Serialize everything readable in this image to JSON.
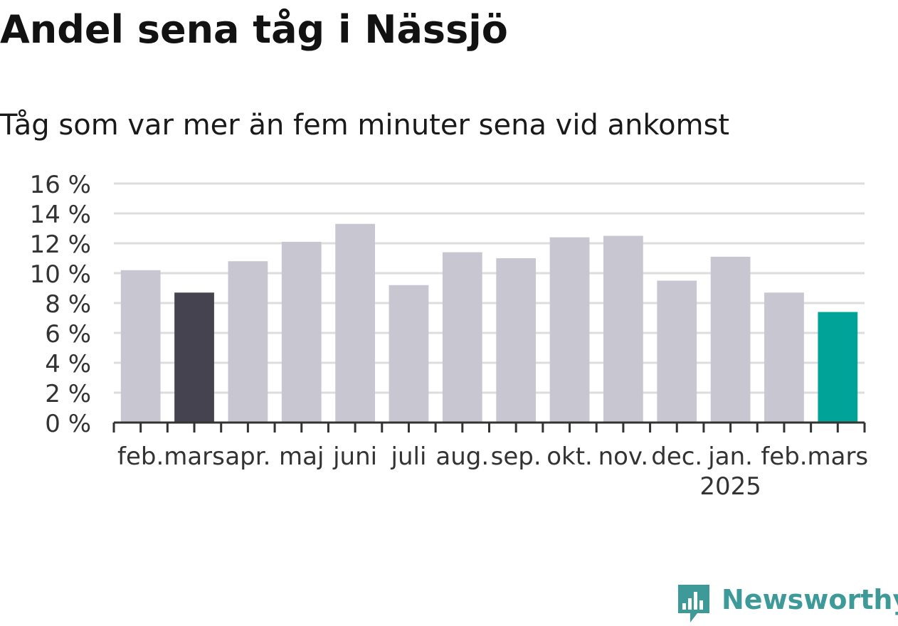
{
  "title": "Andel sena tåg i Nässjö",
  "subtitle": "Tåg som var mer än fem minuter sena vid ankomst",
  "brand": {
    "name": "Newsworthy",
    "color": "#3d9a98",
    "icon": "bar-chart-speech-bubble-icon"
  },
  "colors": {
    "default_bar": "#c8c7d1",
    "highlight_prev_year": "#45434f",
    "highlight_current": "#00a398",
    "grid": "#dddddd",
    "axis": "#333333"
  },
  "chart_data": {
    "type": "bar",
    "categories": [
      "feb.",
      "mars",
      "apr.",
      "maj",
      "juni",
      "juli",
      "aug.",
      "sep.",
      "okt.",
      "nov.",
      "dec.",
      "jan.",
      "feb.",
      "mars"
    ],
    "year_label": {
      "text": "2025",
      "under_category_index": 11
    },
    "values": [
      10.2,
      8.7,
      10.8,
      12.1,
      13.3,
      9.2,
      11.4,
      11.0,
      12.4,
      12.5,
      9.5,
      11.1,
      8.7,
      7.4
    ],
    "bar_colors": [
      "default",
      "highlight_prev_year",
      "default",
      "default",
      "default",
      "default",
      "default",
      "default",
      "default",
      "default",
      "default",
      "default",
      "default",
      "highlight_current"
    ],
    "ylim": [
      0,
      16
    ],
    "yticks": [
      0,
      2,
      4,
      6,
      8,
      10,
      12,
      14,
      16
    ],
    "ytick_format": "{v} %",
    "xlabel": "",
    "ylabel": "",
    "grid": true
  }
}
